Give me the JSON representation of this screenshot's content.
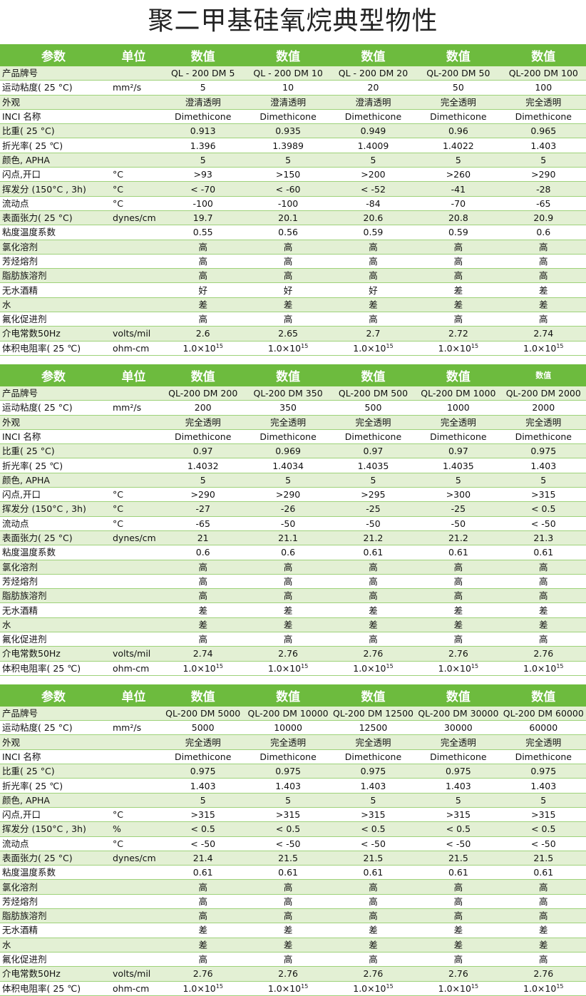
{
  "title": "聚二甲基硅氧烷典型物性",
  "header": {
    "param": "参数",
    "unit": "单位",
    "value": "数值"
  },
  "params": [
    "产品牌号",
    "运动粘度( 25 °C)",
    "外观",
    "INCI 名称",
    "比重( 25 °C)",
    "折光率( 25 ℃)",
    "颜色, APHA",
    "闪点,开口",
    "挥发分 (150°C , 3h)",
    "流动点",
    "表面张力( 25 °C)",
    "粘度温度系数",
    "氯化溶剂",
    "芳烃熔剂",
    "脂肪族溶剂",
    "无水酒精",
    "水",
    "氟化促进剂",
    "介电常数50Hz",
    "体积电阻率( 25 ℃)"
  ],
  "tables": [
    {
      "units": [
        "",
        "mm²/s",
        "",
        "",
        "",
        "",
        "",
        "°C",
        "°C",
        "°C",
        "dynes/cm",
        "",
        "",
        "",
        "",
        "",
        "",
        "",
        "volts/mil",
        "ohm-cm"
      ],
      "small_last_header": false,
      "columns": [
        [
          "QL - 200 DM 5",
          "5",
          "澄清透明",
          "Dimethicone",
          "0.913",
          "1.396",
          "5",
          ">93",
          "< -70",
          "-100",
          "19.7",
          "0.55",
          "高",
          "高",
          "高",
          "好",
          "差",
          "高",
          "2.6",
          {
            "base": "1.0×10",
            "exp": "15"
          }
        ],
        [
          "QL - 200 DM 10",
          "10",
          "澄清透明",
          "Dimethicone",
          "0.935",
          "1.3989",
          "5",
          ">150",
          "< -60",
          "-100",
          "20.1",
          "0.56",
          "高",
          "高",
          "高",
          "好",
          "差",
          "高",
          "2.65",
          {
            "base": "1.0×10",
            "exp": "15"
          }
        ],
        [
          "QL - 200 DM 20",
          "20",
          "澄清透明",
          "Dimethicone",
          "0.949",
          "1.4009",
          "5",
          ">200",
          "< -52",
          "-84",
          "20.6",
          "0.59",
          "高",
          "高",
          "高",
          "好",
          "差",
          "高",
          "2.7",
          {
            "base": "1.0×10",
            "exp": "15"
          }
        ],
        [
          "QL-200 DM 50",
          "50",
          "完全透明",
          "Dimethicone",
          "0.96",
          "1.4022",
          "5",
          ">260",
          "-41",
          "-70",
          "20.8",
          "0.59",
          "高",
          "高",
          "高",
          "差",
          "差",
          "高",
          "2.72",
          {
            "base": "1.0×10",
            "exp": "15"
          }
        ],
        [
          "QL-200 DM 100",
          "100",
          "完全透明",
          "Dimethicone",
          "0.965",
          "1.403",
          "5",
          ">290",
          "-28",
          "-65",
          "20.9",
          "0.6",
          "高",
          "高",
          "高",
          "差",
          "差",
          "高",
          "2.74",
          {
            "base": "1.0×10",
            "exp": "15"
          }
        ]
      ]
    },
    {
      "units": [
        "",
        "mm²/s",
        "",
        "",
        "",
        "",
        "",
        "°C",
        "°C",
        "°C",
        "dynes/cm",
        "",
        "",
        "",
        "",
        "",
        "",
        "",
        "volts/mil",
        "ohm-cm"
      ],
      "small_last_header": true,
      "columns": [
        [
          "QL-200 DM 200",
          "200",
          "完全透明",
          "Dimethicone",
          "0.97",
          "1.4032",
          "5",
          ">290",
          "-27",
          "-65",
          "21",
          "0.6",
          "高",
          "高",
          "高",
          "差",
          "差",
          "高",
          "2.74",
          {
            "base": "1.0×10",
            "exp": "15"
          }
        ],
        [
          "QL-200 DM 350",
          "350",
          "完全透明",
          "Dimethicone",
          "0.969",
          "1.4034",
          "5",
          ">290",
          "-26",
          "-50",
          "21.1",
          "0.6",
          "高",
          "高",
          "高",
          "差",
          "差",
          "高",
          "2.76",
          {
            "base": "1.0×10",
            "exp": "15"
          }
        ],
        [
          "QL-200 DM 500",
          "500",
          "完全透明",
          "Dimethicone",
          "0.97",
          "1.4035",
          "5",
          ">295",
          "-25",
          "-50",
          "21.2",
          "0.61",
          "高",
          "高",
          "高",
          "差",
          "差",
          "高",
          "2.76",
          {
            "base": "1.0×10",
            "exp": "15"
          }
        ],
        [
          "QL-200 DM 1000",
          "1000",
          "完全透明",
          "Dimethicone",
          "0.97",
          "1.4035",
          "5",
          ">300",
          "-25",
          "-50",
          "21.2",
          "0.61",
          "高",
          "高",
          "高",
          "差",
          "差",
          "高",
          "2.76",
          {
            "base": "1.0×10",
            "exp": "15"
          }
        ],
        [
          "QL-200 DM 2000",
          "2000",
          "完全透明",
          "Dimethicone",
          "0.975",
          "1.403",
          "5",
          ">315",
          "< 0.5",
          "< -50",
          "21.3",
          "0.61",
          "高",
          "高",
          "高",
          "差",
          "差",
          "高",
          "2.76",
          {
            "base": "1.0×10",
            "exp": "15"
          }
        ]
      ]
    },
    {
      "units": [
        "",
        "mm²/s",
        "",
        "",
        "",
        "",
        "",
        "°C",
        "%",
        "°C",
        "dynes/cm",
        "",
        "",
        "",
        "",
        "",
        "",
        "",
        "volts/mil",
        "ohm-cm"
      ],
      "small_last_header": false,
      "columns": [
        [
          "QL-200 DM 5000",
          "5000",
          "完全透明",
          "Dimethicone",
          "0.975",
          "1.403",
          "5",
          ">315",
          "< 0.5",
          "< -50",
          "21.4",
          "0.61",
          "高",
          "高",
          "高",
          "差",
          "差",
          "高",
          "2.76",
          {
            "base": "1.0×10",
            "exp": "15"
          }
        ],
        [
          "QL-200 DM 10000",
          "10000",
          "完全透明",
          "Dimethicone",
          "0.975",
          "1.403",
          "5",
          ">315",
          "< 0.5",
          "< -50",
          "21.5",
          "0.61",
          "高",
          "高",
          "高",
          "差",
          "差",
          "高",
          "2.76",
          {
            "base": "1.0×10",
            "exp": "15"
          }
        ],
        [
          "QL-200 DM 12500",
          "12500",
          "完全透明",
          "Dimethicone",
          "0.975",
          "1.403",
          "5",
          ">315",
          "< 0.5",
          "< -50",
          "21.5",
          "0.61",
          "高",
          "高",
          "高",
          "差",
          "差",
          "高",
          "2.76",
          {
            "base": "1.0×10",
            "exp": "15"
          }
        ],
        [
          "QL-200 DM 30000",
          "30000",
          "完全透明",
          "Dimethicone",
          "0.975",
          "1.403",
          "5",
          ">315",
          "< 0.5",
          "< -50",
          "21.5",
          "0.61",
          "高",
          "高",
          "高",
          "差",
          "差",
          "高",
          "2.76",
          {
            "base": "1.0×10",
            "exp": "15"
          }
        ],
        [
          "QL-200 DM 60000",
          "60000",
          "完全透明",
          "Dimethicone",
          "0.975",
          "1.403",
          "5",
          ">315",
          "< 0.5",
          "< -50",
          "21.5",
          "0.61",
          "高",
          "高",
          "高",
          "差",
          "差",
          "高",
          "2.76",
          {
            "base": "1.0×10",
            "exp": "15"
          }
        ]
      ]
    }
  ],
  "colors": {
    "header": "#6dbb3e",
    "row_tint": "#e3f0d4",
    "border": "#9ed27a"
  }
}
